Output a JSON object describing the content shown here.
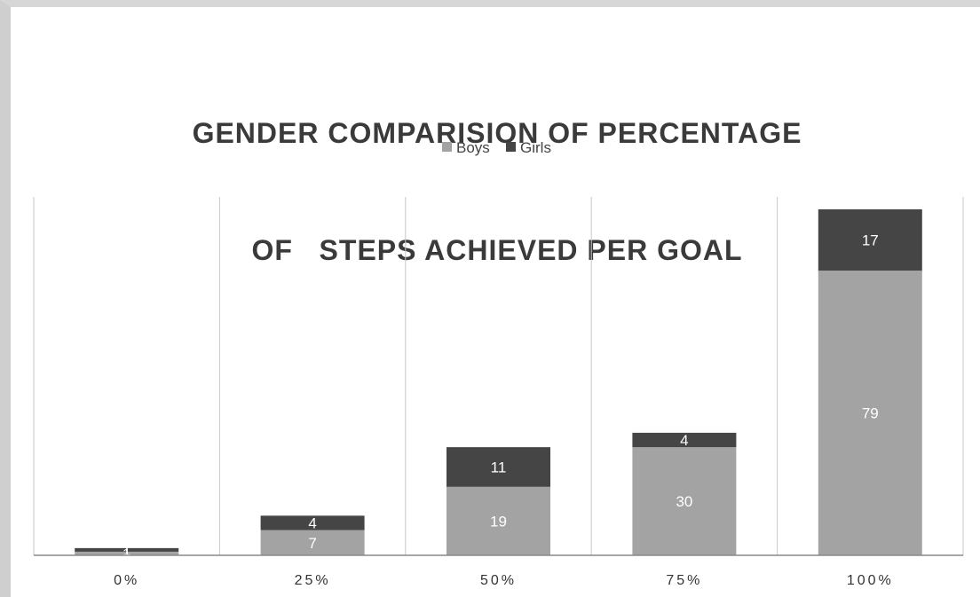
{
  "chart_data": {
    "type": "bar",
    "stacked": true,
    "title_line1": "GENDER COMPARISION OF PERCENTAGE",
    "title_line2": "OF   STEPS ACHIEVED PER GOAL",
    "xlabel": "",
    "ylabel": "",
    "categories": [
      "0%",
      "25%",
      "50%",
      "75%",
      "100%"
    ],
    "series": [
      {
        "name": "Boys",
        "values": [
          1,
          7,
          19,
          30,
          79
        ],
        "color": "#a3a3a3"
      },
      {
        "name": "Girls",
        "values": [
          1,
          4,
          11,
          4,
          17
        ],
        "color": "#454545"
      }
    ],
    "ylim": [
      0,
      96
    ],
    "grid": "vertical",
    "legend": "top-center",
    "data_labels": true
  }
}
